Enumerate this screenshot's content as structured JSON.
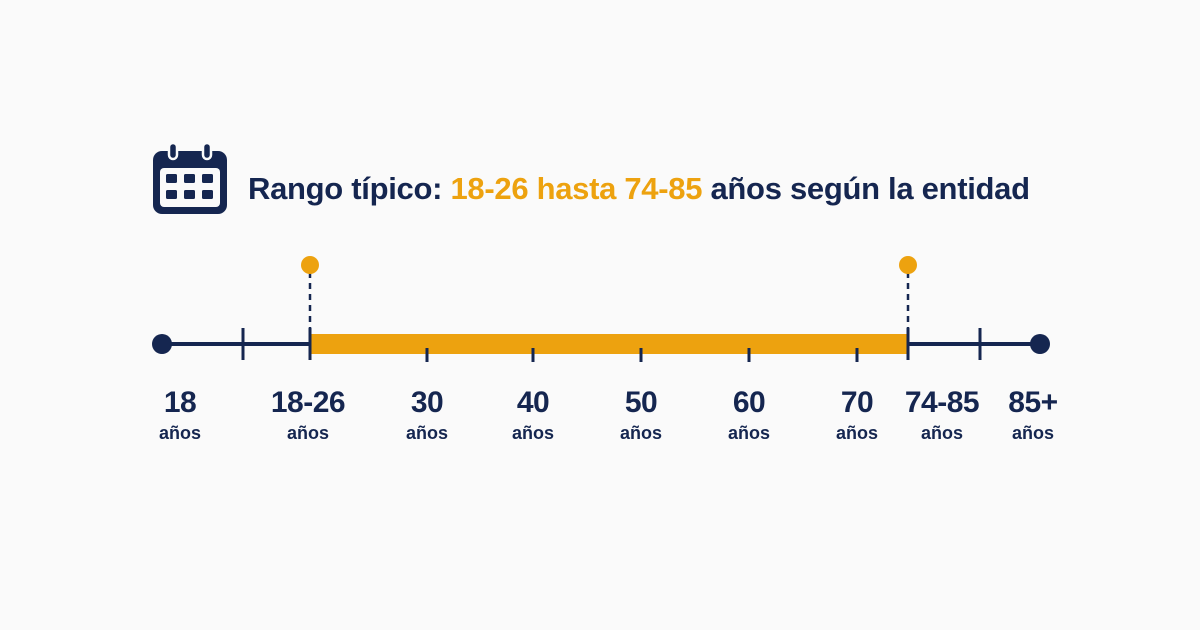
{
  "header": {
    "prefix": "Rango típico:",
    "range_text": "18-26 hasta 74-85",
    "suffix": "años según la entidad",
    "icon": "calendar-icon"
  },
  "colors": {
    "navy": "#152650",
    "accent": "#eda20f",
    "background": "#fafafa"
  },
  "timeline": {
    "labels": [
      {
        "value": "18",
        "unit": "años"
      },
      {
        "value": "18-26",
        "unit": "años"
      },
      {
        "value": "30",
        "unit": "años"
      },
      {
        "value": "40",
        "unit": "años"
      },
      {
        "value": "50",
        "unit": "años"
      },
      {
        "value": "60",
        "unit": "años"
      },
      {
        "value": "70",
        "unit": "años"
      },
      {
        "value": "74-85",
        "unit": "años"
      },
      {
        "value": "85+",
        "unit": "años"
      }
    ],
    "highlight_start": "18-26",
    "highlight_end": "74-85"
  }
}
